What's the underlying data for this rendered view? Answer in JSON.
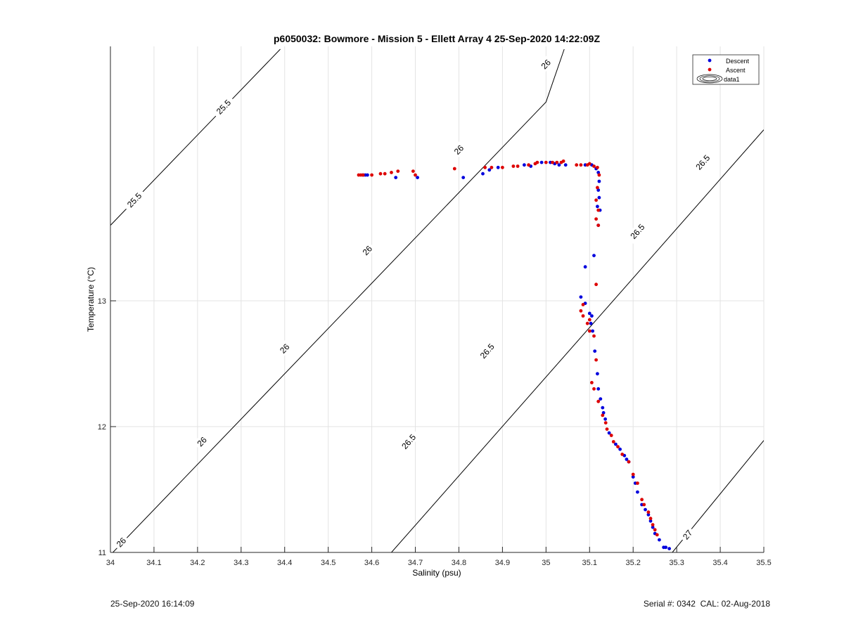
{
  "chart_data": {
    "type": "scatter",
    "title": "p6050032: Bowmore - Mission 5 - Ellett Array 4 25-Sep-2020 14:22:09Z",
    "xlabel": "Salinity (psu)",
    "ylabel": "Temperature (°C)",
    "xlim": [
      34,
      35.5
    ],
    "ylim": [
      11,
      15
    ],
    "xticks": [
      34,
      34.1,
      34.2,
      34.3,
      34.4,
      34.5,
      34.6,
      34.7,
      34.8,
      34.9,
      35,
      35.1,
      35.2,
      35.3,
      35.4,
      35.5
    ],
    "xtick_labels": [
      "34",
      "34.1",
      "34.2",
      "34.3",
      "34.4",
      "34.5",
      "34.6",
      "34.7",
      "34.8",
      "34.9",
      "35",
      "35.1",
      "35.2",
      "35.3",
      "35.4",
      "35.5"
    ],
    "yticks": [
      11,
      12,
      13
    ],
    "ytick_labels": [
      "11",
      "12",
      "13"
    ],
    "grid": true,
    "legend_position": "top-right",
    "legend": [
      {
        "label": "Descent",
        "marker": "dot",
        "color": "#0000dd"
      },
      {
        "label": "Ascent",
        "marker": "dot",
        "color": "#dd0000"
      },
      {
        "label": "data1",
        "marker": "contour",
        "color": "#000000"
      }
    ],
    "contours": [
      {
        "level": "25.5",
        "points": [
          [
            34,
            13.6
          ],
          [
            34.39,
            15
          ]
        ],
        "labels": [
          [
            34.055,
            13.8
          ],
          [
            34.26,
            14.54
          ]
        ]
      },
      {
        "level": "26",
        "points": [
          [
            34,
            10.98
          ],
          [
            35.0,
            14.58
          ],
          [
            35.0417,
            15
          ]
        ],
        "labels": [
          [
            34.025,
            11.08
          ],
          [
            34.21,
            11.88
          ],
          [
            34.4,
            12.62
          ],
          [
            34.59,
            13.4
          ],
          [
            34.8,
            14.2
          ],
          [
            35.0,
            14.88
          ]
        ]
      },
      {
        "level": "26.5",
        "points": [
          [
            34.645,
            11
          ],
          [
            35.5,
            14.36
          ]
        ],
        "labels": [
          [
            34.685,
            11.88
          ],
          [
            34.865,
            12.6
          ],
          [
            35.21,
            13.55
          ],
          [
            35.36,
            14.1
          ]
        ]
      },
      {
        "level": "27",
        "points": [
          [
            35.29,
            11
          ],
          [
            35.5,
            11.89
          ]
        ],
        "labels": [
          [
            35.325,
            11.14
          ]
        ]
      }
    ],
    "series": [
      {
        "name": "Descent",
        "color": "#0000dd",
        "points": [
          [
            34.58,
            14.0
          ],
          [
            34.585,
            14.0
          ],
          [
            34.59,
            14.0
          ],
          [
            34.655,
            13.98
          ],
          [
            34.705,
            13.98
          ],
          [
            34.81,
            13.98
          ],
          [
            34.855,
            14.01
          ],
          [
            34.87,
            14.04
          ],
          [
            34.89,
            14.06
          ],
          [
            34.95,
            14.08
          ],
          [
            34.965,
            14.07
          ],
          [
            34.99,
            14.1
          ],
          [
            35.01,
            14.1
          ],
          [
            35.02,
            14.09
          ],
          [
            35.03,
            14.08
          ],
          [
            35.045,
            14.08
          ],
          [
            35.09,
            14.08
          ],
          [
            35.105,
            14.08
          ],
          [
            35.115,
            14.05
          ],
          [
            35.12,
            14.02
          ],
          [
            35.122,
            13.95
          ],
          [
            35.12,
            13.88
          ],
          [
            35.122,
            13.82
          ],
          [
            35.118,
            13.75
          ],
          [
            35.124,
            13.72
          ],
          [
            35.12,
            13.6
          ],
          [
            35.11,
            13.36
          ],
          [
            35.09,
            13.27
          ],
          [
            35.08,
            13.03
          ],
          [
            35.09,
            12.98
          ],
          [
            35.1,
            12.9
          ],
          [
            35.105,
            12.88
          ],
          [
            35.103,
            12.82
          ],
          [
            35.107,
            12.76
          ],
          [
            35.112,
            12.6
          ],
          [
            35.118,
            12.42
          ],
          [
            35.12,
            12.3
          ],
          [
            35.125,
            12.22
          ],
          [
            35.13,
            12.15
          ],
          [
            35.132,
            12.11
          ],
          [
            35.136,
            12.06
          ],
          [
            35.145,
            11.95
          ],
          [
            35.16,
            11.86
          ],
          [
            35.17,
            11.82
          ],
          [
            35.18,
            11.77
          ],
          [
            35.185,
            11.74
          ],
          [
            35.19,
            11.72
          ],
          [
            35.2,
            11.6
          ],
          [
            35.205,
            11.55
          ],
          [
            35.21,
            11.48
          ],
          [
            35.22,
            11.38
          ],
          [
            35.228,
            11.34
          ],
          [
            35.235,
            11.3
          ],
          [
            35.24,
            11.25
          ],
          [
            35.245,
            11.2
          ],
          [
            35.25,
            11.15
          ],
          [
            35.26,
            11.1
          ],
          [
            35.27,
            11.04
          ],
          [
            35.275,
            11.04
          ],
          [
            35.283,
            11.03
          ]
        ]
      },
      {
        "name": "Ascent",
        "color": "#dd0000",
        "points": [
          [
            34.57,
            14.0
          ],
          [
            34.575,
            14.0
          ],
          [
            34.58,
            14.0
          ],
          [
            34.6,
            14.0
          ],
          [
            34.62,
            14.01
          ],
          [
            34.63,
            14.01
          ],
          [
            34.645,
            14.02
          ],
          [
            34.66,
            14.03
          ],
          [
            34.695,
            14.03
          ],
          [
            34.7,
            14.0
          ],
          [
            34.79,
            14.05
          ],
          [
            34.86,
            14.06
          ],
          [
            34.875,
            14.06
          ],
          [
            34.9,
            14.06
          ],
          [
            34.925,
            14.07
          ],
          [
            34.935,
            14.07
          ],
          [
            34.96,
            14.08
          ],
          [
            34.975,
            14.09
          ],
          [
            34.98,
            14.1
          ],
          [
            35.0,
            14.1
          ],
          [
            35.015,
            14.1
          ],
          [
            35.025,
            14.1
          ],
          [
            35.035,
            14.1
          ],
          [
            35.04,
            14.11
          ],
          [
            35.07,
            14.08
          ],
          [
            35.08,
            14.08
          ],
          [
            35.095,
            14.08
          ],
          [
            35.1,
            14.09
          ],
          [
            35.11,
            14.07
          ],
          [
            35.118,
            14.06
          ],
          [
            35.122,
            14.0
          ],
          [
            35.118,
            13.9
          ],
          [
            35.115,
            13.8
          ],
          [
            35.12,
            13.72
          ],
          [
            35.115,
            13.65
          ],
          [
            35.12,
            13.6
          ],
          [
            35.115,
            13.13
          ],
          [
            35.085,
            12.97
          ],
          [
            35.08,
            12.92
          ],
          [
            35.085,
            12.88
          ],
          [
            35.1,
            12.85
          ],
          [
            35.095,
            12.82
          ],
          [
            35.1,
            12.76
          ],
          [
            35.11,
            12.72
          ],
          [
            35.115,
            12.53
          ],
          [
            35.105,
            12.35
          ],
          [
            35.11,
            12.3
          ],
          [
            35.12,
            12.2
          ],
          [
            35.13,
            12.09
          ],
          [
            35.137,
            12.03
          ],
          [
            35.14,
            11.98
          ],
          [
            35.15,
            11.93
          ],
          [
            35.155,
            11.88
          ],
          [
            35.165,
            11.84
          ],
          [
            35.175,
            11.78
          ],
          [
            35.19,
            11.72
          ],
          [
            35.2,
            11.62
          ],
          [
            35.21,
            11.55
          ],
          [
            35.22,
            11.42
          ],
          [
            35.225,
            11.38
          ],
          [
            35.235,
            11.32
          ],
          [
            35.24,
            11.27
          ],
          [
            35.245,
            11.22
          ],
          [
            35.25,
            11.18
          ],
          [
            35.255,
            11.14
          ]
        ]
      }
    ]
  },
  "footer": {
    "timestamp": "25-Sep-2020 16:14:09",
    "serial": "Serial #: 0342",
    "cal": "CAL: 02-Aug-2018"
  }
}
